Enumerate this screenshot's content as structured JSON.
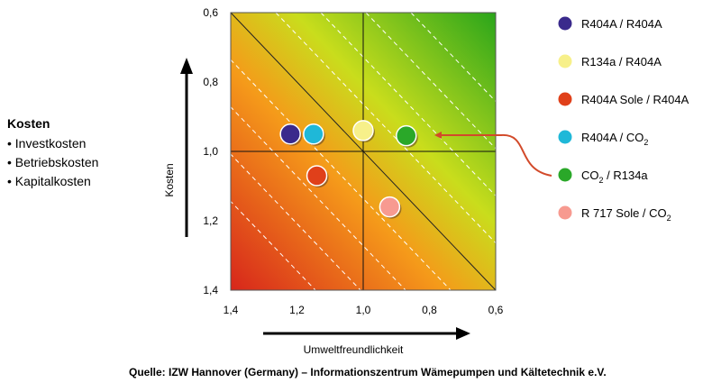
{
  "chart_data": {
    "type": "scatter",
    "xlabel": "Umweltfreundlichkeit",
    "ylabel": "Kosten",
    "xlim": [
      1.4,
      0.6
    ],
    "ylim": [
      0.6,
      1.4
    ],
    "x_ticks": [
      "1,4",
      "1,2",
      "1,0",
      "0,8",
      "0,6"
    ],
    "y_ticks": [
      "0,6",
      "0,8",
      "1,0",
      "1,2",
      "1,4"
    ],
    "x_reversed": true,
    "y_reversed": true,
    "reference_lines": {
      "x": 1.0,
      "y": 1.0
    },
    "grid": false,
    "legend_position": "right",
    "series": [
      {
        "label": "R404A / R404A",
        "label_sub": "",
        "label_tail": "",
        "color": "#3a2a8c",
        "x": 1.22,
        "y": 0.95
      },
      {
        "label": "R134a / R404A",
        "label_sub": "",
        "label_tail": "",
        "color": "#f7f08a",
        "x": 1.0,
        "y": 0.94
      },
      {
        "label": "R404A Sole / R404A",
        "label_sub": "",
        "label_tail": "",
        "color": "#e0401a",
        "x": 1.14,
        "y": 1.07
      },
      {
        "label": "R404A / CO",
        "label_sub": "2",
        "label_tail": "",
        "color": "#1fb8d8",
        "x": 1.15,
        "y": 0.95
      },
      {
        "label": "CO",
        "label_sub": "2",
        "label_tail": " / R134a",
        "color": "#2aa829",
        "x": 0.87,
        "y": 0.955
      },
      {
        "label": "R 717 Sole / CO",
        "label_sub": "2",
        "label_tail": "",
        "color": "#f79a90",
        "x": 0.92,
        "y": 1.16
      }
    ]
  },
  "side_panel": {
    "title": "Kosten",
    "items": [
      "Investkosten",
      "Betriebskosten",
      "Kapitalkosten"
    ]
  },
  "source": "Quelle: IZW Hannover (Germany) – Informationszentrum Wämepumpen und Kältetechnik e.V.",
  "colors": {
    "gradient_low": "#d7261b",
    "gradient_mid_orange": "#f59a1a",
    "gradient_mid_yellow": "#c9dd1c",
    "gradient_high": "#2aa51b",
    "arrow_red": "#d24a2a"
  }
}
